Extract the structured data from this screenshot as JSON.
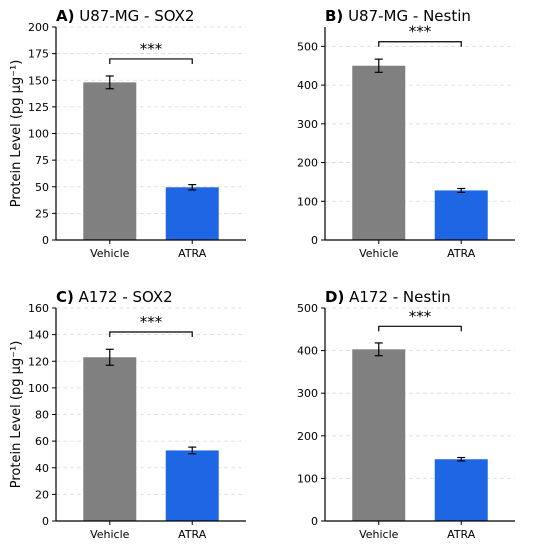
{
  "colors": {
    "vehicle": "#808080",
    "atra": "#1f66e5",
    "grid": "#d9d9d9"
  },
  "chart_data": [
    {
      "type": "bar",
      "panel_letter": "A)",
      "title": "U87-MG - SOX2",
      "ylabel": "Protein Level (pg µg⁻¹)",
      "categories": [
        "Vehicle",
        "ATRA"
      ],
      "values": [
        148,
        49.5
      ],
      "errors": [
        6,
        2.5
      ],
      "ylim": [
        0,
        200
      ],
      "yticks": [
        0,
        25,
        50,
        75,
        100,
        125,
        150,
        175,
        200
      ],
      "significance": "***",
      "bracket_y": 170
    },
    {
      "type": "bar",
      "panel_letter": "B)",
      "title": "U87-MG - Nestin",
      "ylabel": "",
      "categories": [
        "Vehicle",
        "ATRA"
      ],
      "values": [
        450,
        128
      ],
      "errors": [
        17,
        5
      ],
      "ylim": [
        0,
        550
      ],
      "yticks": [
        0,
        100,
        200,
        300,
        400,
        500
      ],
      "significance": "***",
      "bracket_y": 512
    },
    {
      "type": "bar",
      "panel_letter": "C)",
      "title": "A172 - SOX2",
      "ylabel": "Protein Level (pg µg⁻¹)",
      "categories": [
        "Vehicle",
        "ATRA"
      ],
      "values": [
        123,
        53
      ],
      "errors": [
        6,
        2.5
      ],
      "ylim": [
        0,
        160
      ],
      "yticks": [
        0,
        20,
        40,
        60,
        80,
        100,
        120,
        140,
        160
      ],
      "significance": "***",
      "bracket_y": 142
    },
    {
      "type": "bar",
      "panel_letter": "D)",
      "title": "A172 - Nestin",
      "ylabel": "",
      "categories": [
        "Vehicle",
        "ATRA"
      ],
      "values": [
        403,
        145
      ],
      "errors": [
        15,
        4
      ],
      "ylim": [
        0,
        500
      ],
      "yticks": [
        0,
        100,
        200,
        300,
        400,
        500
      ],
      "significance": "***",
      "bracket_y": 457
    }
  ]
}
